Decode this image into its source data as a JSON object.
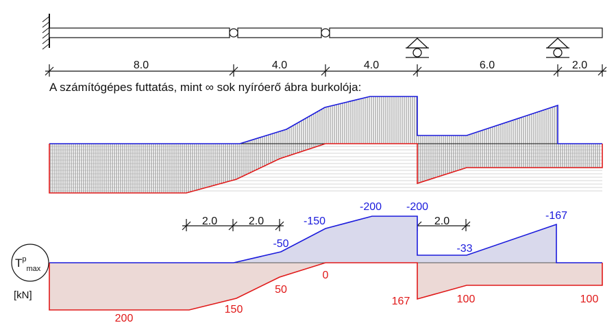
{
  "caption": "A számítógépes futtatás, mint ∞ sok nyíróerő ábra burkolója:",
  "beam_dimensions": [
    "8.0",
    "4.0",
    "4.0",
    "6.0",
    "2.0"
  ],
  "lower_dimensions": [
    "2.0",
    "2.0",
    "2.0"
  ],
  "symbol": {
    "base": "T",
    "sup": "p",
    "sub": "max"
  },
  "unit": "[kN]",
  "colors": {
    "upper": "#1a1adc",
    "lower": "#e01818",
    "upper_fill": "#d9d9ec",
    "lower_fill": "#ecd9d6"
  },
  "upper_labels": [
    "-50",
    "-150",
    "-200",
    "-200",
    "-33",
    "-167"
  ],
  "lower_labels": [
    "200",
    "150",
    "50",
    "0",
    "167",
    "100",
    "100"
  ]
}
